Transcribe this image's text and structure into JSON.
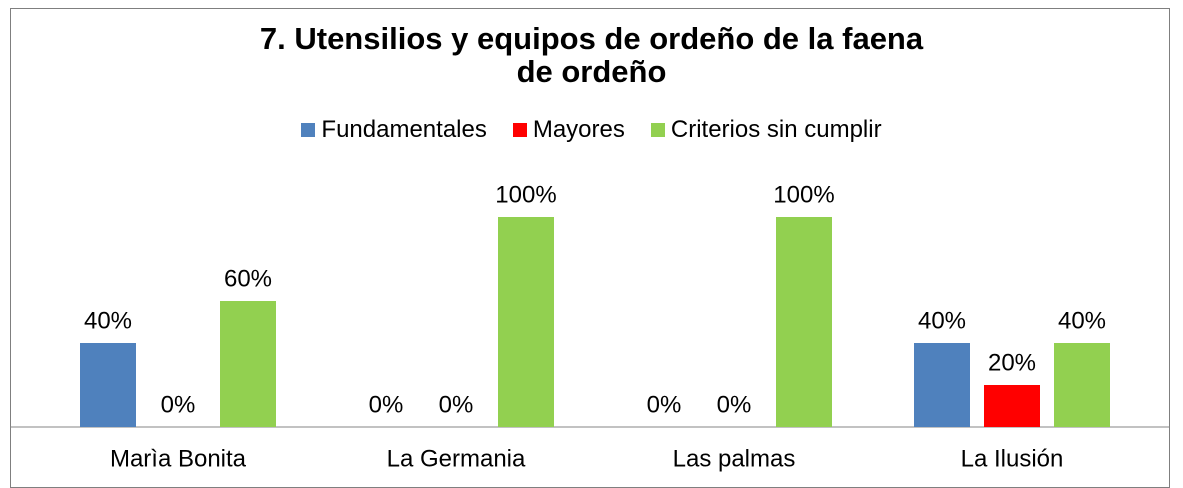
{
  "chart_data": {
    "type": "bar",
    "title": "7. Utensilios y equipos de ordeño de la faena de ordeño",
    "categories": [
      "Marìa Bonita",
      "La Germania",
      "Las palmas",
      "La Ilusión"
    ],
    "series": [
      {
        "name": "Fundamentales",
        "color": "#4f81bd",
        "values": [
          40,
          0,
          0,
          40
        ],
        "value_labels": [
          "40%",
          "0%",
          "0%",
          "40%"
        ]
      },
      {
        "name": "Mayores",
        "color": "#ff0000",
        "values": [
          0,
          0,
          0,
          20
        ],
        "value_labels": [
          "0%",
          "0%",
          "0%",
          "20%"
        ]
      },
      {
        "name": "Criterios sin cumplir",
        "color": "#92d050",
        "values": [
          60,
          100,
          100,
          40
        ],
        "value_labels": [
          "60%",
          "100%",
          "100%",
          "40%"
        ]
      }
    ],
    "ylim": [
      0,
      100
    ]
  }
}
